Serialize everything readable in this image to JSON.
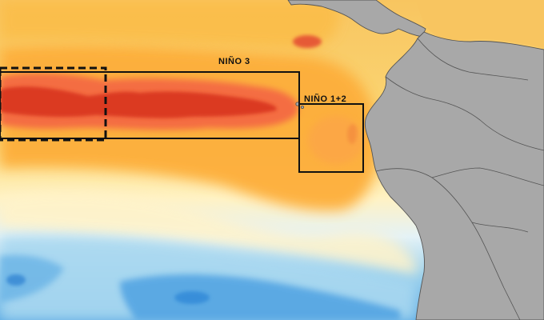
{
  "map": {
    "regions": [
      {
        "id": "nino3",
        "label": "NIÑO 3"
      },
      {
        "id": "nino12",
        "label": "NIÑO 1+2"
      },
      {
        "id": "nino34",
        "label": ""
      }
    ],
    "colors": {
      "land": "#a8a8a8",
      "border": "#555555",
      "box": "#111111",
      "sst_warm_dark": "#d7301f",
      "sst_warm": "#f46d43",
      "sst_orange": "#fdae3a",
      "sst_light": "#fee08b",
      "sst_pale": "#fff6c8",
      "sst_cool_pale": "#e0f3f8",
      "sst_cool": "#7fc3ea",
      "sst_cool_dark": "#2b8fd9"
    }
  }
}
